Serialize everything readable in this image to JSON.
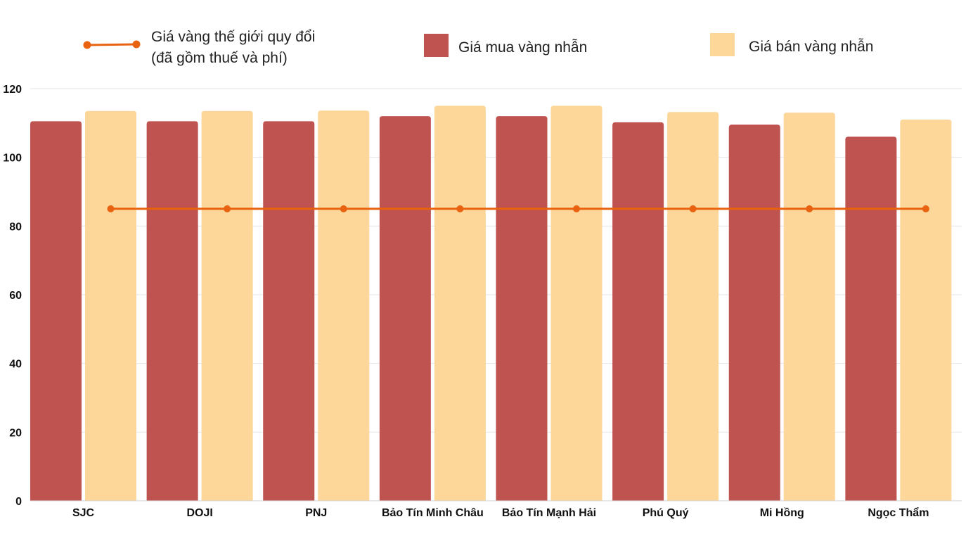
{
  "chart_data": {
    "type": "bar",
    "categories": [
      "SJC",
      "DOJI",
      "PNJ",
      "Bảo Tín Minh Châu",
      "Bảo Tín Mạnh Hải",
      "Phú Quý",
      "Mi Hồng",
      "Ngọc Thẩm"
    ],
    "series": [
      {
        "name": "Giá mua vàng nhẫn",
        "kind": "bar",
        "color": "#bf5350",
        "values": [
          110.5,
          110.5,
          110.5,
          112.0,
          112.0,
          110.2,
          109.5,
          106.0
        ]
      },
      {
        "name": "Giá bán vàng nhẫn",
        "kind": "bar",
        "color": "#fdd699",
        "values": [
          113.5,
          113.5,
          113.6,
          115.0,
          115.0,
          113.2,
          113.0,
          111.0
        ]
      },
      {
        "name_lines": [
          "Giá vàng thế giới quy đổi",
          "(đã gồm thuế và phí)"
        ],
        "kind": "line",
        "color": "#e8620f",
        "values": [
          85,
          85,
          85,
          85,
          85,
          85,
          85,
          85
        ]
      }
    ],
    "ylim": [
      0,
      120
    ],
    "yticks": [
      "0",
      "20",
      "40",
      "60",
      "80",
      "100",
      "120"
    ],
    "grid": true,
    "legend_position": "top",
    "title": "",
    "xlabel": "",
    "ylabel": ""
  }
}
